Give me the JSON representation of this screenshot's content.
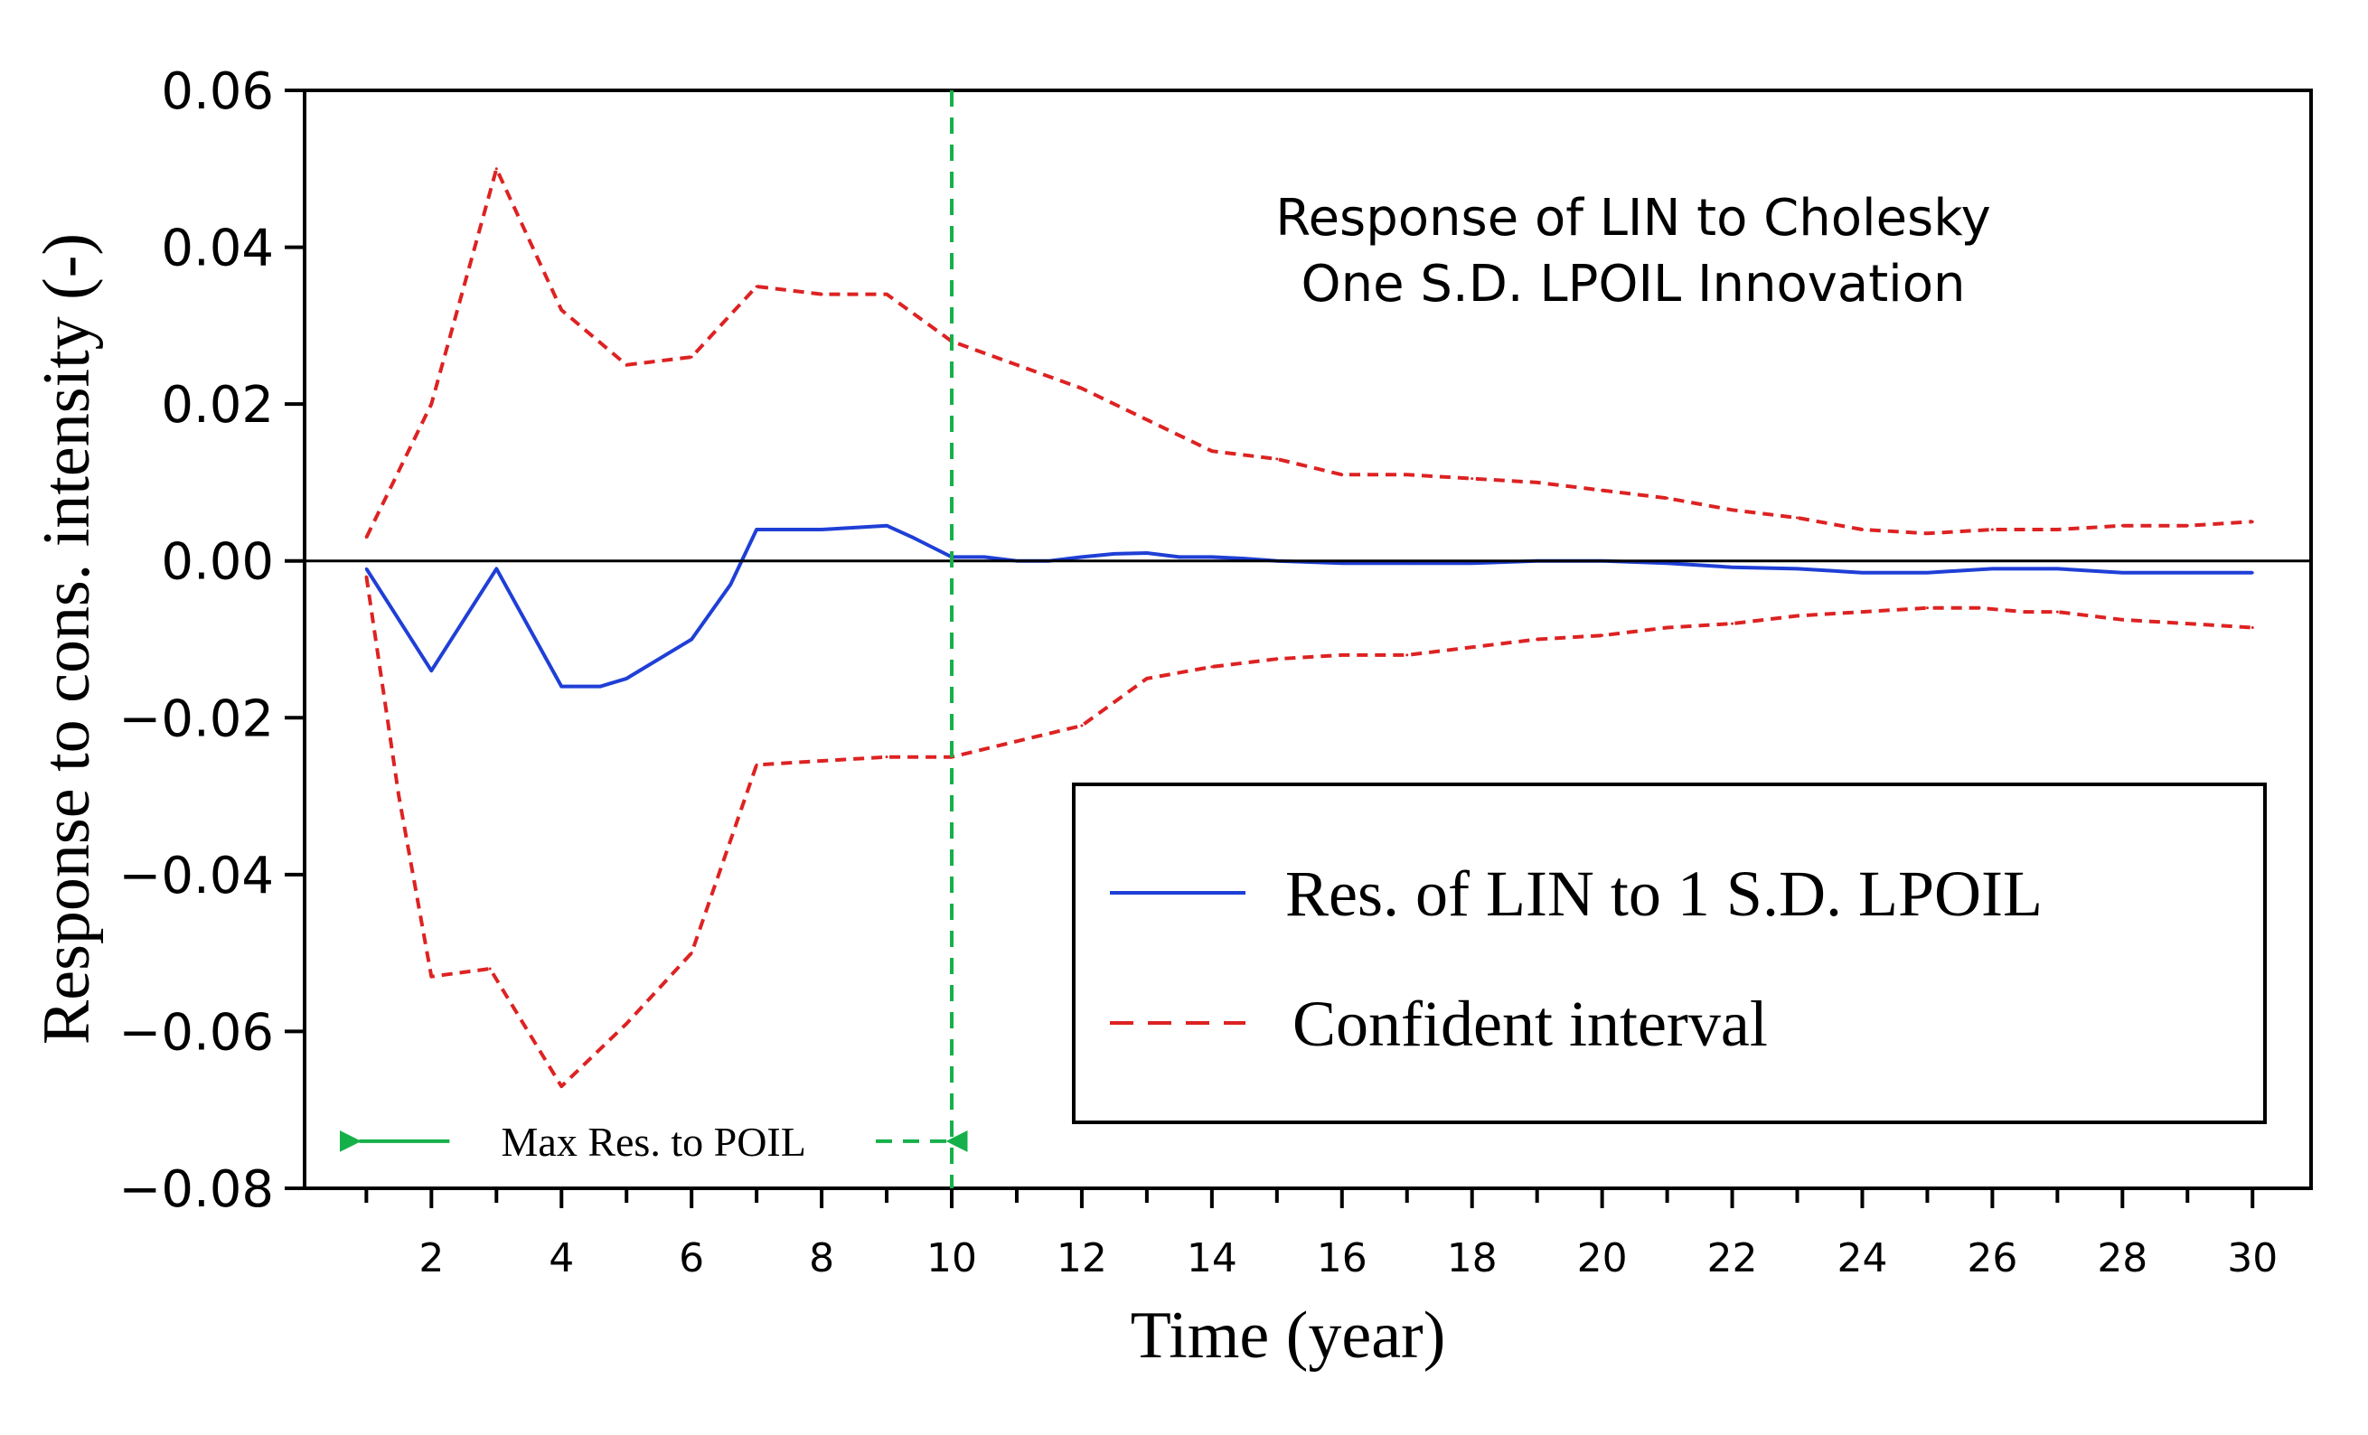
{
  "chart_data": {
    "type": "line",
    "title_lines": [
      "Response of LIN to Cholesky",
      "One S.D. LPOIL Innovation"
    ],
    "xlabel": "Time (year)",
    "ylabel": "Response to cons. intensity (-)",
    "xlim": [
      0.05,
      30.9
    ],
    "ylim": [
      -0.08,
      0.06
    ],
    "x_ticks": [
      2,
      4,
      6,
      8,
      10,
      12,
      14,
      16,
      18,
      20,
      22,
      24,
      26,
      28,
      30
    ],
    "x_tick_labels": [
      "2",
      "4",
      "6",
      "8",
      "10",
      "12",
      "14",
      "16",
      "18",
      "20",
      "22",
      "24",
      "26",
      "28",
      "30"
    ],
    "y_ticks": [
      0.06,
      0.04,
      0.02,
      0.0,
      -0.02,
      -0.04,
      -0.06,
      -0.08
    ],
    "y_tick_labels": [
      "0.06",
      "0.04",
      "0.02",
      "0.00",
      "−0.02",
      "−0.04",
      "−0.06",
      "−0.08"
    ],
    "zero_line": 0,
    "series": [
      {
        "name": "Res. of LIN to 1 S.D. LPOIL",
        "style": "solid",
        "color": "#1f3fd6",
        "x": [
          1,
          2,
          3,
          4,
          4.6,
          5,
          6,
          6.6,
          7,
          8,
          9,
          9.4,
          10,
          10.5,
          11,
          11.5,
          12,
          12.5,
          13,
          13.5,
          14,
          14.5,
          15,
          16,
          17,
          18,
          19,
          20,
          21,
          22,
          23,
          24,
          25,
          26,
          27,
          28,
          29,
          30
        ],
        "values": [
          -0.001,
          -0.014,
          -0.001,
          -0.016,
          -0.016,
          -0.015,
          -0.01,
          -0.003,
          0.004,
          0.004,
          0.0045,
          0.003,
          0.0005,
          0.0005,
          0.0,
          0.0,
          0.0005,
          0.0009,
          0.001,
          0.0005,
          0.0005,
          0.0003,
          0.0,
          -0.0003,
          -0.0003,
          -0.0003,
          0.0,
          0.0,
          -0.0003,
          -0.0008,
          -0.001,
          -0.0015,
          -0.0015,
          -0.001,
          -0.001,
          -0.0015,
          -0.0015,
          -0.0015
        ]
      },
      {
        "name": "Confident interval",
        "style": "dashed",
        "color": "#dd2222",
        "x": [
          1,
          2,
          3,
          4,
          5,
          6,
          7,
          8,
          9,
          10,
          11,
          12,
          13,
          14,
          15,
          16,
          17,
          18,
          19,
          20,
          21,
          22,
          23,
          24,
          25,
          26,
          27,
          28,
          29,
          30
        ],
        "values": [
          0.003,
          0.02,
          0.05,
          0.032,
          0.025,
          0.026,
          0.035,
          0.034,
          0.034,
          0.028,
          0.025,
          0.022,
          0.018,
          0.014,
          0.013,
          0.011,
          0.011,
          0.0105,
          0.01,
          0.009,
          0.008,
          0.0065,
          0.0055,
          0.004,
          0.0035,
          0.004,
          0.004,
          0.0045,
          0.0045,
          0.005
        ]
      },
      {
        "name": "Confident interval (lower)",
        "style": "dashed",
        "color": "#dd2222",
        "x": [
          1,
          1.5,
          2,
          2.9,
          4,
          5,
          6,
          7,
          8,
          9,
          10,
          11,
          12,
          13,
          14,
          15,
          16,
          17,
          18,
          19,
          20,
          21,
          22,
          23,
          24,
          25,
          25.8,
          26.5,
          27,
          28,
          29,
          30
        ],
        "values": [
          -0.002,
          -0.03,
          -0.053,
          -0.052,
          -0.067,
          -0.059,
          -0.05,
          -0.026,
          -0.0255,
          -0.025,
          -0.025,
          -0.023,
          -0.021,
          -0.015,
          -0.0135,
          -0.0125,
          -0.012,
          -0.012,
          -0.011,
          -0.01,
          -0.0095,
          -0.0085,
          -0.008,
          -0.007,
          -0.0065,
          -0.006,
          -0.006,
          -0.0065,
          -0.0065,
          -0.0075,
          -0.008,
          -0.0085
        ]
      }
    ],
    "vline": {
      "x": 10,
      "color": "#16b04a"
    },
    "annotation": {
      "text": "Max Res. to POIL",
      "from_x": 1,
      "to_x": 10,
      "y": -0.074
    },
    "legend": {
      "position": "bottom-right",
      "entries": [
        {
          "label": "Res. of LIN to 1 S.D. LPOIL",
          "style": "solid",
          "color": "#1f3fd6"
        },
        {
          "label": "Confident interval",
          "style": "dashed",
          "color": "#dd2222"
        }
      ]
    }
  }
}
